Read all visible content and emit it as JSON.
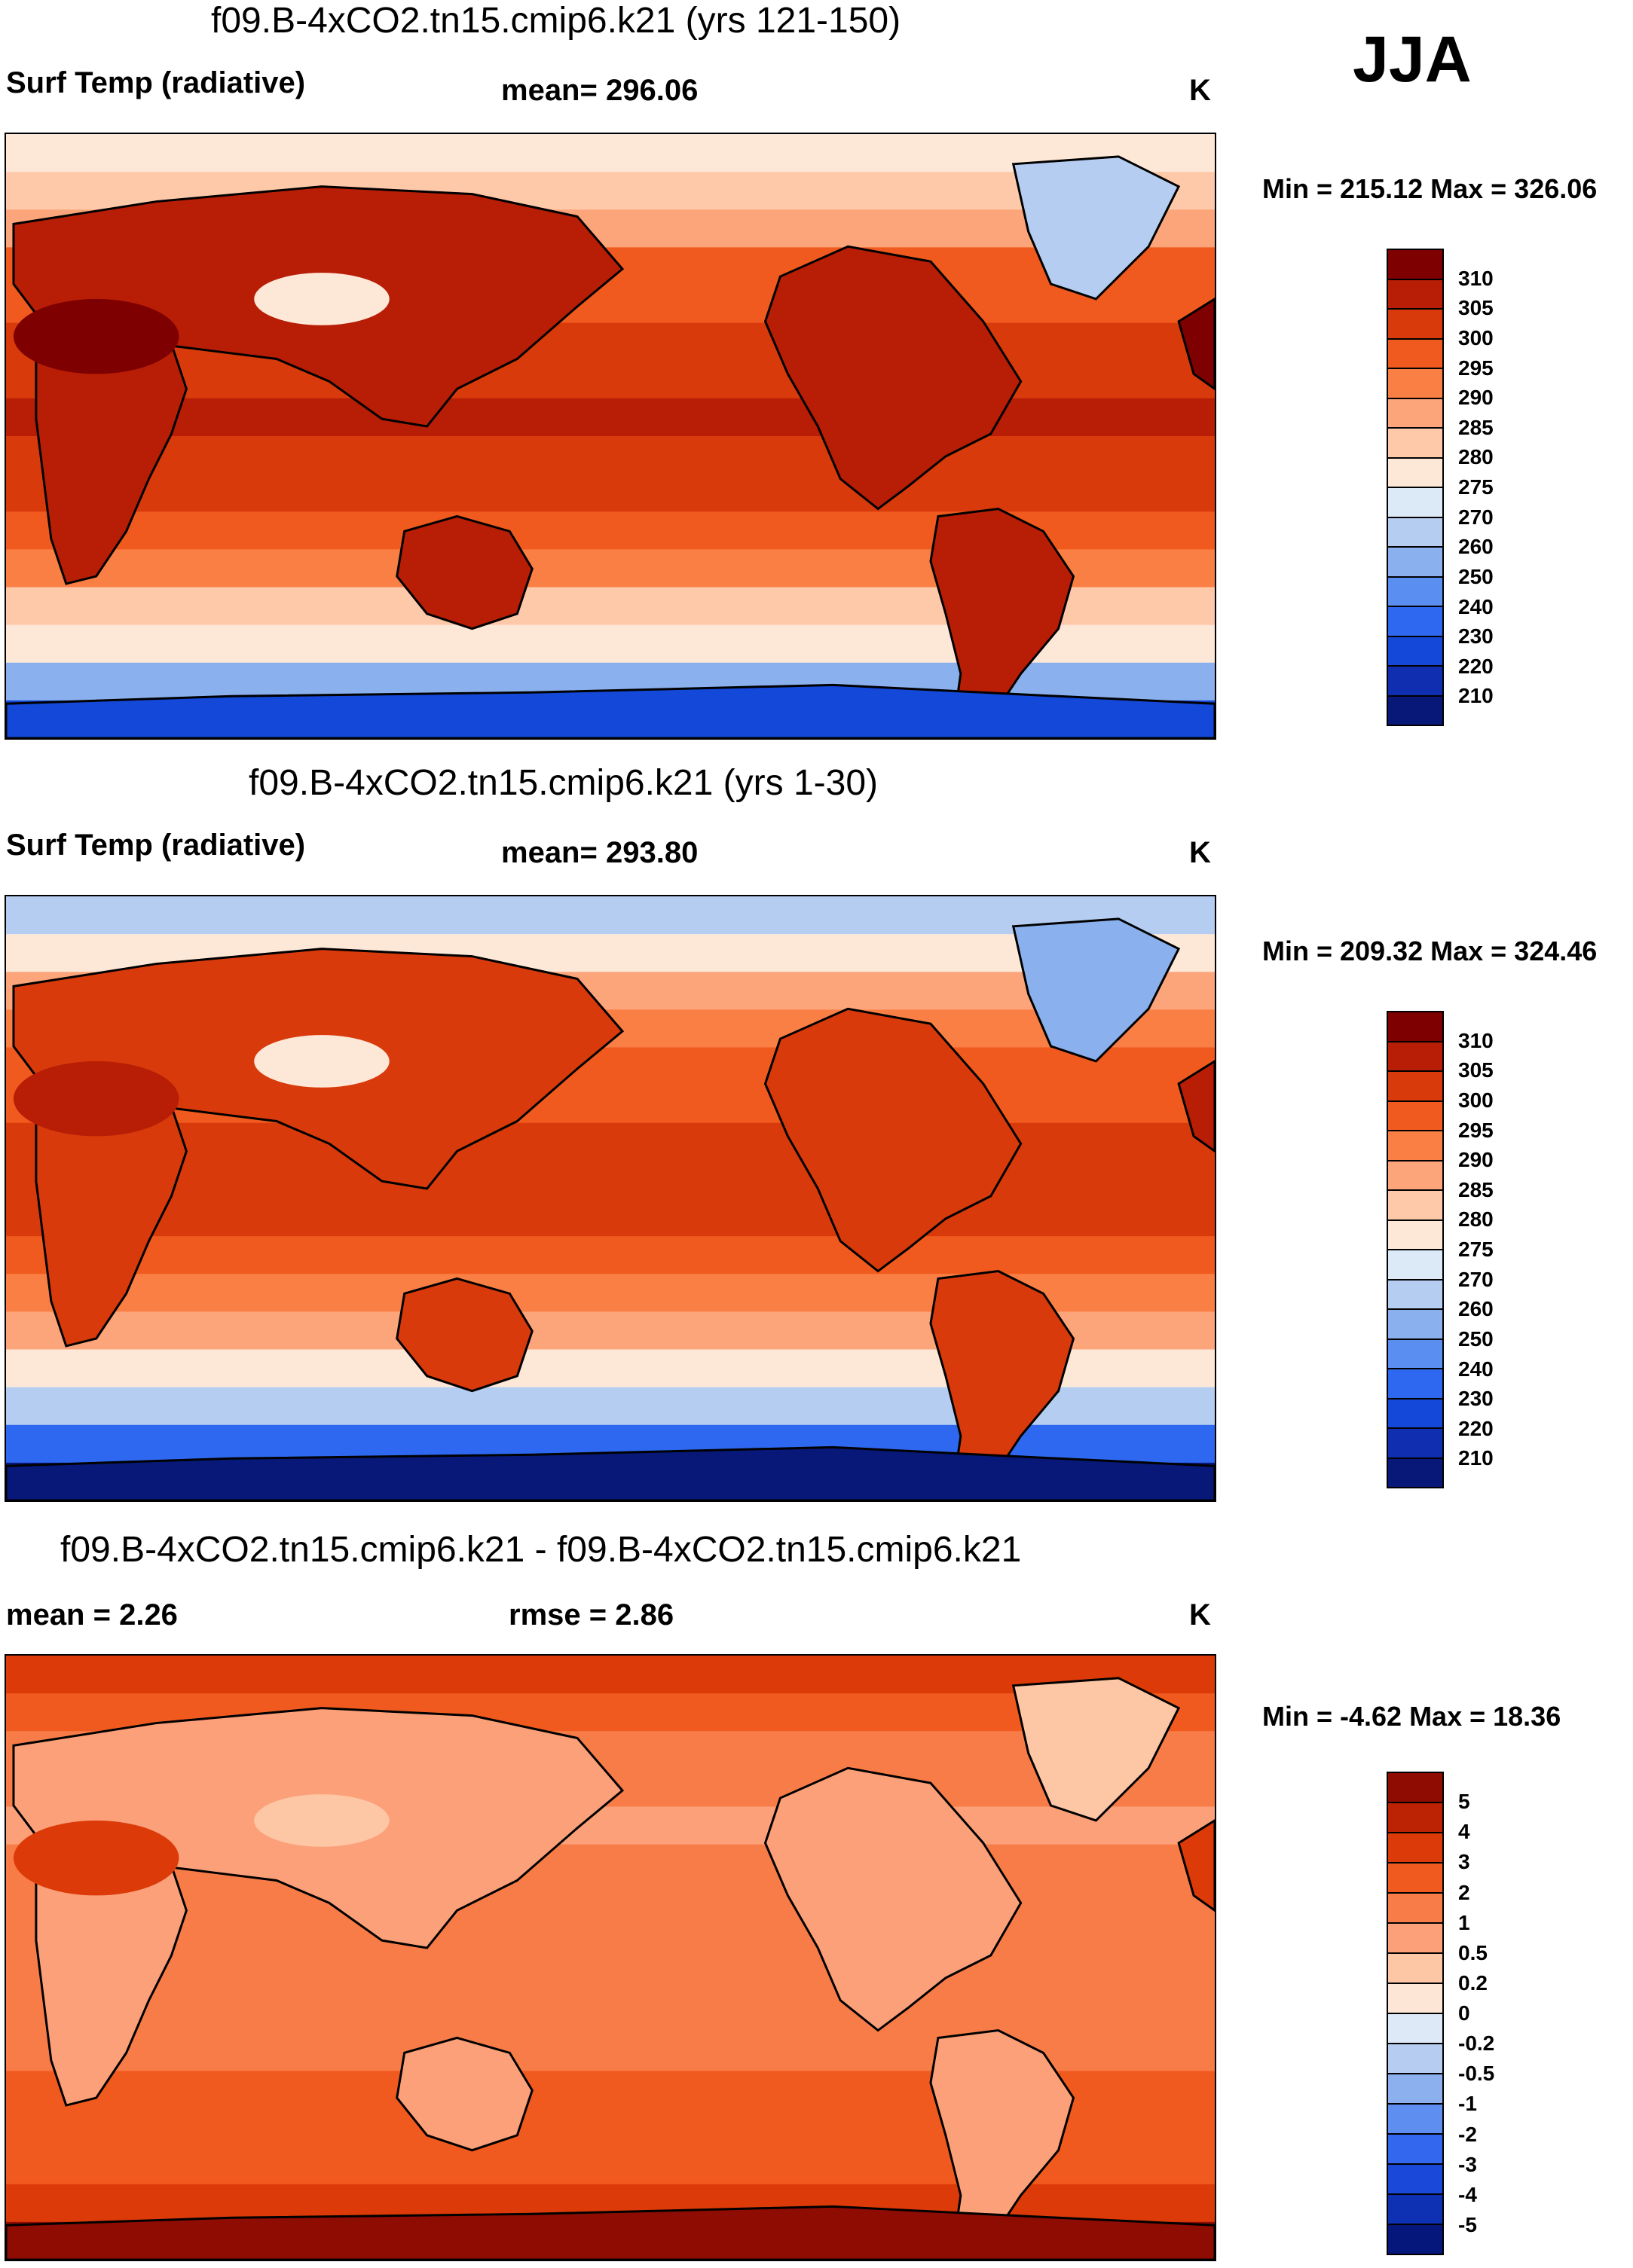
{
  "season": "JJA",
  "panels": [
    {
      "title": "f09.B-4xCO2.tn15.cmip6.k21 (yrs 121-150)",
      "left_label": "Surf Temp (radiative)",
      "mean_label": "mean= 296.06",
      "unit": "K",
      "minmax": "Min = 215.12 Max = 326.06"
    },
    {
      "title": "f09.B-4xCO2.tn15.cmip6.k21 (yrs 1-30)",
      "left_label": "Surf Temp (radiative)",
      "mean_label": "mean= 293.80",
      "unit": "K",
      "minmax": "Min = 209.32 Max = 324.46"
    },
    {
      "title": "f09.B-4xCO2.tn15.cmip6.k21 - f09.B-4xCO2.tn15.cmip6.k21",
      "left_label": "mean =   2.26",
      "mean_label": "rmse =   2.86",
      "unit": "K",
      "minmax": "Min =  -4.62 Max =  18.36"
    }
  ],
  "abs_colorbar": {
    "colors": [
      "#7f0000",
      "#b81d06",
      "#d83a0b",
      "#f05a1e",
      "#fa7f45",
      "#fca47a",
      "#fdc9a9",
      "#fde8d8",
      "#dceaf8",
      "#b5cdf1",
      "#8ab0ee",
      "#5a8ef0",
      "#2f68f0",
      "#1448d8",
      "#0f2fb0",
      "#081878"
    ],
    "labels": [
      "310",
      "305",
      "300",
      "295",
      "290",
      "285",
      "280",
      "275",
      "270",
      "260",
      "250",
      "240",
      "230",
      "220",
      "210"
    ]
  },
  "diff_colorbar": {
    "colors": [
      "#8f0c02",
      "#bc2204",
      "#dc3a08",
      "#f15a1e",
      "#f87c48",
      "#fba079",
      "#fdc6a4",
      "#fde6d6",
      "#dde9f7",
      "#b6cdf1",
      "#8cb0ee",
      "#5d8ef0",
      "#3368ee",
      "#1a48d9",
      "#0e30b2",
      "#06177c"
    ],
    "labels": [
      "5",
      "4",
      "3",
      "2",
      "1",
      "0.5",
      "0.2",
      "0",
      "-0.2",
      "-0.5",
      "-1",
      "-2",
      "-3",
      "-4",
      "-5"
    ]
  },
  "maps": [
    {
      "background": "#d83a0b",
      "bands": [
        "#fde8d8",
        "#fdc9a9",
        "#fca47a",
        "#f05a1e",
        "#f05a1e",
        "#d83a0b",
        "#d83a0b",
        "#b81d06",
        "#d83a0b",
        "#d83a0b",
        "#f05a1e",
        "#fa7f45",
        "#fdc9a9",
        "#fde8d8",
        "#8ab0ee",
        "#1448d8"
      ],
      "land": "#b81d06",
      "land_hot": "#7f0000",
      "ice": "#b5cdf1",
      "plateau": "#fde8d8"
    },
    {
      "background": "#f05a1e",
      "bands": [
        "#b5cdf1",
        "#fde8d8",
        "#fca47a",
        "#fa7f45",
        "#f05a1e",
        "#f05a1e",
        "#d83a0b",
        "#d83a0b",
        "#d83a0b",
        "#f05a1e",
        "#fa7f45",
        "#fca47a",
        "#fde8d8",
        "#b5cdf1",
        "#2f68f0",
        "#081878"
      ],
      "land": "#d83a0b",
      "land_hot": "#b81d06",
      "ice": "#8ab0ee",
      "plateau": "#fde8d8"
    },
    {
      "background": "#f87c48",
      "bands": [
        "#dc3a08",
        "#f15a1e",
        "#f87c48",
        "#f87c48",
        "#fba079",
        "#f87c48",
        "#f87c48",
        "#f87c48",
        "#f87c48",
        "#f87c48",
        "#f87c48",
        "#f15a1e",
        "#f15a1e",
        "#f15a1e",
        "#dc3a08",
        "#8f0c02"
      ],
      "land": "#fba079",
      "land_hot": "#dc3a08",
      "ice": "#fdc6a4",
      "plateau": "#fdc6a4"
    }
  ]
}
